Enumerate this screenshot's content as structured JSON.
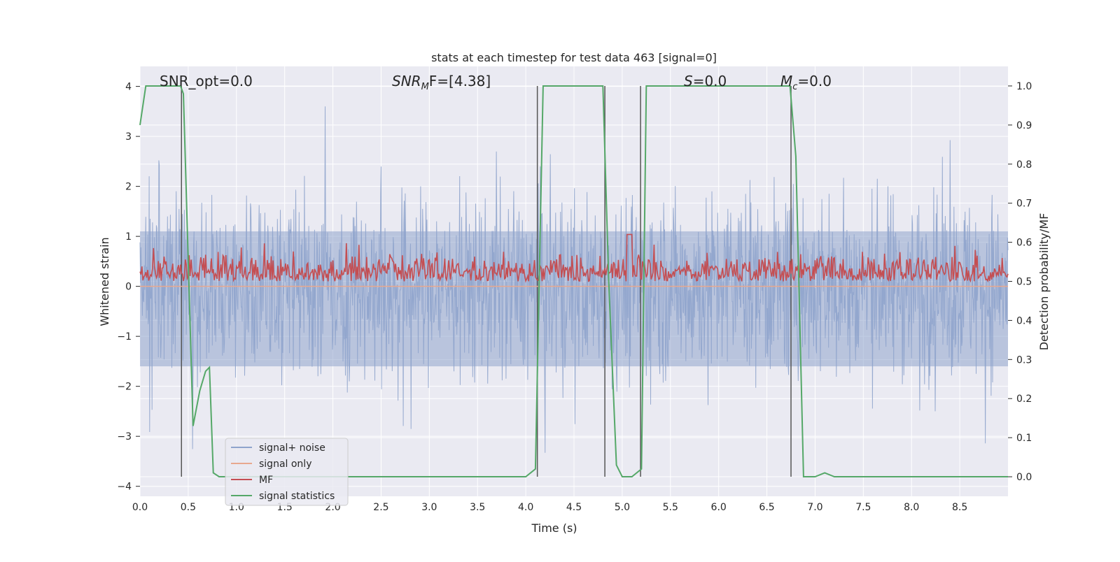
{
  "chart_data": {
    "type": "line",
    "title": "stats at each timestep for test data 463 [signal=0]",
    "xlabel": "Time (s)",
    "ylabel_left": "Whitened strain",
    "ylabel_right": "Detection probability/MF",
    "xlim": [
      0.0,
      9.0
    ],
    "ylim_left": [
      -4.2,
      4.4
    ],
    "ylim_right": [
      -0.05,
      1.05
    ],
    "x_ticks": [
      "0.0",
      "0.5",
      "1.0",
      "1.5",
      "2.0",
      "2.5",
      "3.0",
      "3.5",
      "4.0",
      "4.5",
      "5.0",
      "5.5",
      "6.0",
      "6.5",
      "7.0",
      "7.5",
      "8.0",
      "8.5"
    ],
    "y_left_ticks": [
      "4",
      "3",
      "2",
      "1",
      "0",
      "−1",
      "−2",
      "−3",
      "−4"
    ],
    "y_right_ticks": [
      "1.0",
      "0.9",
      "0.8",
      "0.7",
      "0.6",
      "0.5",
      "0.4",
      "0.3",
      "0.2",
      "0.1",
      "0.0"
    ],
    "grid": true,
    "legend_position": "lower-left",
    "annotations": {
      "snr_opt": "SNR_opt=0.0",
      "snr_mf_main": "SNR",
      "snr_mf_sub": "M",
      "snr_mf_rest": "F=[4.38]",
      "s_main": "S",
      "s_rest": "=0.0",
      "mc_main": "M",
      "mc_sub": "c",
      "mc_rest": "=0.0"
    },
    "vertical_markers": [
      0.43,
      4.12,
      4.82,
      5.19,
      6.75
    ],
    "series": [
      {
        "name": "signal+ noise",
        "axis": "left",
        "color": "#8fa4cc",
        "description_level": "whitened strain noise, roughly symmetric, peaks up to about ±3.5",
        "amplitude_range": [
          -3.8,
          3.6
        ]
      },
      {
        "name": "signal only",
        "axis": "left",
        "color": "#e8a88e",
        "values_constant": 0.0
      },
      {
        "name": "MF",
        "axis": "right",
        "color": "#c44e52",
        "typical_range": [
          0.5,
          0.62
        ],
        "peak": {
          "x": 5.07,
          "y": 0.62
        }
      },
      {
        "name": "signal statistics",
        "axis": "right",
        "color": "#55a868",
        "x": [
          0.0,
          0.06,
          0.42,
          0.45,
          0.55,
          0.62,
          0.68,
          0.72,
          0.76,
          0.82,
          0.9,
          1.0,
          2.0,
          3.0,
          4.0,
          4.1,
          4.18,
          4.5,
          4.8,
          4.86,
          4.94,
          5.0,
          5.1,
          5.2,
          5.25,
          5.5,
          6.0,
          6.5,
          6.74,
          6.8,
          6.88,
          7.0,
          7.1,
          7.2,
          8.0,
          9.0
        ],
        "y": [
          0.9,
          1.0,
          1.0,
          0.98,
          0.13,
          0.22,
          0.27,
          0.28,
          0.01,
          0.0,
          0.0,
          0.0,
          0.0,
          0.0,
          0.0,
          0.02,
          1.0,
          1.0,
          1.0,
          0.5,
          0.03,
          0.0,
          0.0,
          0.02,
          1.0,
          1.0,
          1.0,
          1.0,
          1.0,
          0.82,
          0.0,
          0.0,
          0.01,
          0.0,
          0.0,
          0.0
        ]
      }
    ]
  }
}
